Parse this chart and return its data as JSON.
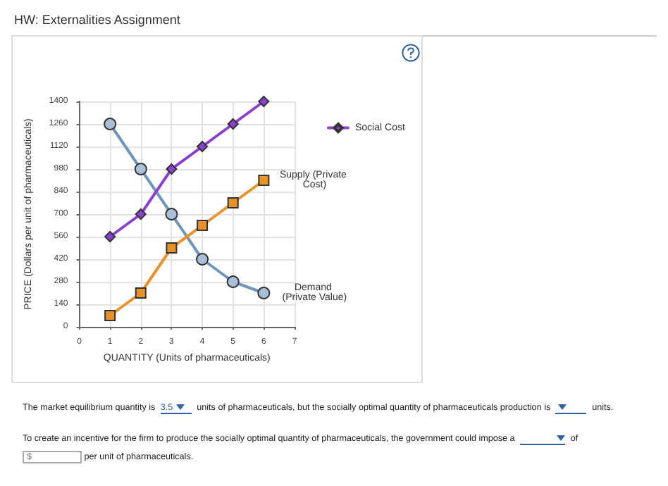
{
  "chart_data": {
    "type": "line",
    "title": "HW: Externalities Assignment",
    "xlabel": "QUANTITY (Units of pharmaceuticals)",
    "ylabel": "PRICE (Dollars per unit of pharmaceuticals)",
    "x": [
      1,
      2,
      3,
      4,
      5,
      6
    ],
    "series": [
      {
        "name": "Demand (Private Value)",
        "color": "#6f95b8",
        "marker": "circle",
        "values": [
          1260,
          980,
          700,
          420,
          280,
          210
        ]
      },
      {
        "name": "Supply (Private Cost)",
        "color": "#e8922a",
        "marker": "square",
        "values": [
          70,
          210,
          490,
          630,
          770,
          910
        ]
      },
      {
        "name": "Social Cost",
        "color": "#8a3fd1",
        "marker": "diamond",
        "values": [
          560,
          700,
          980,
          1120,
          1260,
          1400
        ]
      }
    ],
    "xlim": [
      0,
      7
    ],
    "xticks": [
      0,
      1,
      2,
      3,
      4,
      5,
      6,
      7
    ],
    "ylim": [
      0,
      1400
    ],
    "yticks": [
      0,
      140,
      280,
      420,
      560,
      700,
      840,
      980,
      1120,
      1260,
      1400
    ],
    "grid": true,
    "legend": "top right",
    "annotations": [
      "The market equilibrium quantity is",
      "3.5",
      "units of pharmaceuticals, but the socially optimal quantity of pharmaceuticals production is",
      "units.",
      "To create an incentive for the firm to produce the socially optimal quantity of pharmaceuticals, the government could impose a",
      "of",
      "$",
      "per unit of pharmaceuticals."
    ]
  }
}
